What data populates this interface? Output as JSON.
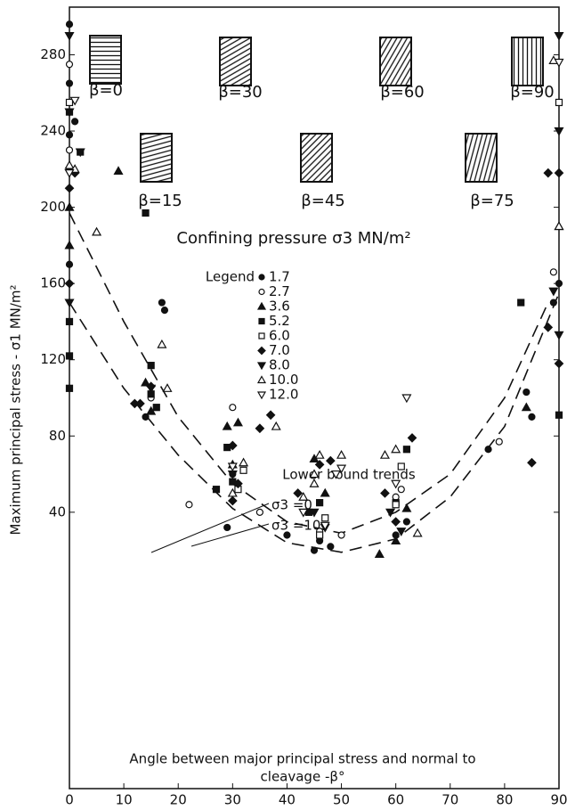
{
  "chart_data": {
    "type": "scatter",
    "title": "Confining pressure σ3 MN/m²",
    "y_label": "Maximum principal stress - σ1 MN/m²",
    "x_label": [
      "Angle between major principal stress and normal to",
      "cleavage -β°"
    ],
    "legend_title": "Legend",
    "xlim": [
      0,
      90
    ],
    "ylim": [
      -105,
      305
    ],
    "xticks": [
      0,
      10,
      20,
      30,
      40,
      50,
      60,
      70,
      80,
      90
    ],
    "yticks": [
      40,
      80,
      120,
      160,
      200,
      240,
      280
    ],
    "insets": [
      "β=0",
      "β=30",
      "β=60",
      "β=90",
      "β=15",
      "β=45",
      "β=75"
    ],
    "trend_title": "Lower bound trends",
    "series": [
      {
        "name": "1.7",
        "marker": "circle",
        "filled": true,
        "color": "#111",
        "x": [
          0,
          0,
          0,
          14,
          17,
          17.5,
          29,
          30,
          40,
          45,
          46,
          48,
          60,
          62,
          77,
          84,
          85,
          89,
          90,
          0,
          0,
          1
        ],
        "values": [
          296,
          265,
          238,
          90,
          150,
          146,
          32,
          60,
          28,
          20,
          25,
          22,
          28,
          35,
          73,
          103,
          90,
          150,
          160,
          220,
          170,
          245
        ]
      },
      {
        "name": "2.7",
        "marker": "circle",
        "filled": false,
        "color": "#111",
        "x": [
          0,
          22,
          30,
          35,
          46,
          50,
          60,
          61,
          79,
          0,
          89,
          15
        ],
        "values": [
          230,
          44,
          95,
          40,
          30,
          28,
          48,
          52,
          77,
          275,
          166,
          100
        ]
      },
      {
        "name": "3.6",
        "marker": "triangle",
        "filled": true,
        "color": "#111",
        "x": [
          0,
          9,
          14,
          15,
          29,
          30,
          31,
          45,
          47,
          57,
          60,
          62,
          84,
          90,
          0
        ],
        "values": [
          200,
          219,
          108,
          93,
          85,
          65,
          87,
          68,
          50,
          18,
          25,
          42,
          95,
          190,
          180
        ]
      },
      {
        "name": "5.2",
        "marker": "square",
        "filled": true,
        "color": "#111",
        "x": [
          0,
          0,
          0,
          2,
          14,
          15,
          15,
          16,
          27,
          29,
          30,
          44,
          46,
          60,
          62,
          83,
          90,
          0
        ],
        "values": [
          250,
          122,
          105,
          229,
          197,
          117,
          102,
          95,
          52,
          74,
          56,
          40,
          45,
          45,
          73,
          150,
          91,
          140
        ]
      },
      {
        "name": "6.0",
        "marker": "square",
        "filled": false,
        "color": "#111",
        "x": [
          0,
          31,
          46,
          60,
          61,
          90,
          32,
          47
        ],
        "values": [
          255,
          52,
          28,
          44,
          64,
          255,
          62,
          37
        ]
      },
      {
        "name": "7.0",
        "marker": "diamond",
        "filled": true,
        "color": "#111",
        "x": [
          0,
          1,
          12,
          13,
          15,
          30,
          31,
          35,
          37,
          42,
          46,
          48,
          58,
          60,
          63,
          85,
          88,
          90,
          90,
          88,
          0,
          30
        ],
        "values": [
          210,
          218,
          97,
          97,
          106,
          75,
          55,
          84,
          91,
          50,
          65,
          67,
          50,
          35,
          79,
          66,
          137,
          118,
          218,
          218,
          160,
          46
        ]
      },
      {
        "name": "8.0",
        "marker": "tri-down",
        "filled": true,
        "color": "#111",
        "x": [
          0,
          0,
          2,
          15,
          30,
          45,
          47,
          59,
          61,
          90,
          90,
          90,
          89,
          0
        ],
        "values": [
          290,
          250,
          229,
          105,
          60,
          40,
          32,
          40,
          30,
          290,
          240,
          133,
          156,
          150
        ]
      },
      {
        "name": "10.0",
        "marker": "triangle",
        "filled": false,
        "color": "#111",
        "x": [
          0,
          1,
          5,
          17,
          18,
          30,
          32,
          38,
          43,
          45,
          46,
          50,
          58,
          60,
          64,
          89,
          90,
          45
        ],
        "values": [
          222,
          220,
          187,
          128,
          105,
          50,
          66,
          85,
          48,
          55,
          70,
          70,
          70,
          73,
          29,
          277,
          190,
          60
        ]
      },
      {
        "name": "12.0",
        "marker": "tri-down",
        "filled": false,
        "color": "#111",
        "x": [
          1,
          0,
          30,
          43,
          49,
          50,
          60,
          62,
          47,
          90
        ],
        "values": [
          256,
          218,
          64,
          40,
          60,
          63,
          55,
          100,
          33,
          276
        ]
      }
    ],
    "trends": [
      {
        "name": "σ3 =0",
        "color": "#111",
        "x": [
          0,
          10,
          20,
          30,
          40,
          50,
          60,
          70,
          80,
          90
        ],
        "values": [
          150,
          105,
          70,
          42,
          24,
          19,
          26,
          48,
          85,
          155
        ]
      },
      {
        "name": "σ3 =10",
        "color": "#111",
        "x": [
          0,
          10,
          20,
          30,
          40,
          50,
          60,
          70,
          80,
          88
        ],
        "values": [
          197,
          140,
          90,
          55,
          35,
          29,
          40,
          60,
          100,
          150
        ]
      }
    ]
  }
}
